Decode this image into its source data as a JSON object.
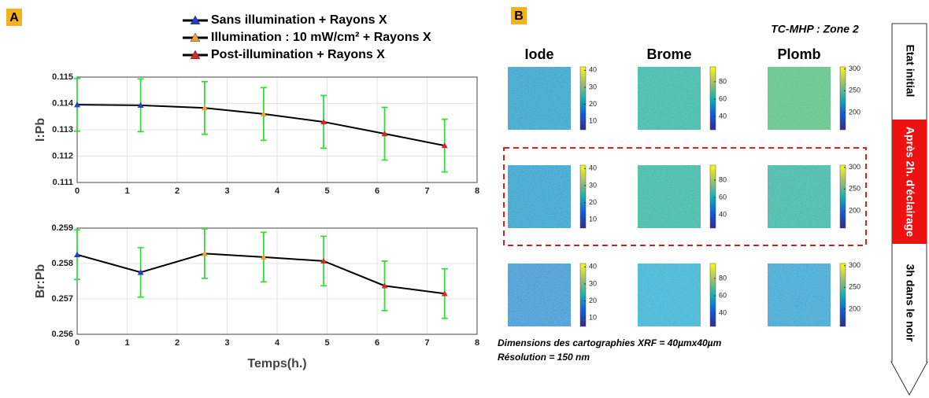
{
  "panel_a": {
    "label": "A"
  },
  "chart_data": [
    {
      "type": "line",
      "y_label": "I:Pb",
      "legend": [
        {
          "name": "Sans illumination + Rayons X",
          "color": "#1f3fd0"
        },
        {
          "name": "Illumination :  10  mW/cm² + Rayons X",
          "color": "#e8a33a"
        },
        {
          "name": "Post-illumination + Rayons X",
          "color": "#d9262a"
        }
      ],
      "x": [
        0,
        1.27,
        2.55,
        3.73,
        4.93,
        6.15,
        7.35
      ],
      "series": [
        {
          "color": "#000000",
          "error_color": "#33dd33",
          "marker_colors": [
            "#1f3fd0",
            "#1f3fd0",
            "#e8a33a",
            "#e8a33a",
            "#d9262a",
            "#d9262a",
            "#d9262a"
          ],
          "values": [
            0.11395,
            0.11393,
            0.11383,
            0.1136,
            0.1133,
            0.11285,
            0.1124
          ],
          "errors": [
            0.001,
            0.001,
            0.001,
            0.001,
            0.001,
            0.001,
            0.001
          ]
        }
      ],
      "xlim": [
        0,
        8
      ],
      "xticks": [
        0,
        1,
        2,
        3,
        4,
        5,
        6,
        7,
        8
      ],
      "ylim": [
        0.111,
        0.115
      ],
      "yticks": [
        0.111,
        0.112,
        0.113,
        0.114,
        0.115
      ],
      "grid": true
    },
    {
      "type": "line",
      "y_label": "Br:Pb",
      "x_label": "Temps(h.)",
      "x": [
        0,
        1.27,
        2.55,
        3.73,
        4.93,
        6.15,
        7.35
      ],
      "series": [
        {
          "color": "#000000",
          "error_color": "#33dd33",
          "marker_colors": [
            "#1f3fd0",
            "#1f3fd0",
            "#e8a33a",
            "#e8a33a",
            "#d9262a",
            "#d9262a",
            "#d9262a"
          ],
          "values": [
            0.25825,
            0.25775,
            0.25828,
            0.25818,
            0.25807,
            0.25737,
            0.25715
          ],
          "errors": [
            0.0007,
            0.0007,
            0.0007,
            0.0007,
            0.0007,
            0.0007,
            0.0007
          ]
        }
      ],
      "xlim": [
        0,
        8
      ],
      "xticks": [
        0,
        1,
        2,
        3,
        4,
        5,
        6,
        7,
        8
      ],
      "ylim": [
        0.256,
        0.259
      ],
      "yticks": [
        0.256,
        0.257,
        0.258,
        0.259
      ],
      "grid": true
    }
  ],
  "panel_b": {
    "label": "B",
    "title": "TC-MHP : Zone 2",
    "columns": [
      "Iode",
      "Brome",
      "Plomb"
    ],
    "colorbars": [
      {
        "lim": [
          5,
          42
        ],
        "ticks": [
          10,
          20,
          30,
          40
        ]
      },
      {
        "lim": [
          25,
          97
        ],
        "ticks": [
          40,
          60,
          80
        ]
      },
      {
        "lim": [
          160,
          305
        ],
        "ticks": [
          200,
          250,
          300
        ]
      }
    ],
    "stages": [
      "Etat initial",
      "Après 2h. d'éclairage",
      "3h dans le noir"
    ],
    "notes": [
      "Dimensions des cartographies XRF = 40µmx40µm",
      "Résolution = 150 nm"
    ]
  }
}
